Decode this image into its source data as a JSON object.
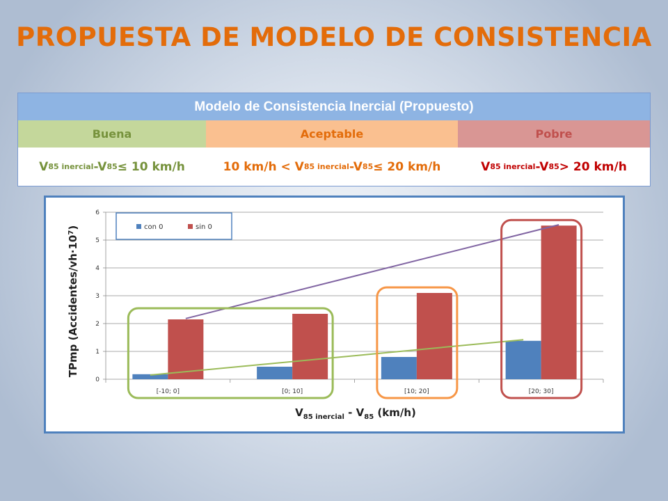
{
  "title": "PROPUESTA DE MODELO DE CONSISTENCIA",
  "model_table": {
    "header": "Modelo de Consistencia Inercial (Propuesto)",
    "categories": [
      {
        "label": "Buena",
        "color": "#c4d79b",
        "text_color": "#76923c"
      },
      {
        "label": "Aceptable",
        "color": "#fac090",
        "text_color": "#e36c0a"
      },
      {
        "label": "Pobre",
        "color": "#d99694",
        "text_color": "#c0504d"
      }
    ],
    "conditions": {
      "buena": {
        "v": "V",
        "sub1": "85 inercial",
        "mid": "-V",
        "sub2": "85",
        "rest": " ≤ 10 km/h"
      },
      "aceptable": {
        "pre": "10 km/h < V",
        "sub1": "85 inercial",
        "mid": "-V",
        "sub2": "85",
        "rest": " ≤ 20 km/h"
      },
      "pobre": {
        "v": "V",
        "sub1": "85 inercial",
        "mid": "-V",
        "sub2": "85",
        "rest": " > 20 km/h"
      }
    }
  },
  "chart_data": {
    "type": "bar",
    "categories": [
      "[-10; 0]",
      "[0; 10]",
      "[10; 20]",
      "[20; 30]"
    ],
    "series": [
      {
        "name": "con 0",
        "values": [
          0.18,
          0.45,
          0.8,
          1.38
        ],
        "color": "#4f81bd"
      },
      {
        "name": "sin 0",
        "values": [
          2.15,
          2.35,
          3.1,
          5.52
        ],
        "color": "#c0504d"
      }
    ],
    "trendlines": [
      {
        "series": "con 0",
        "color": "#9bbb59",
        "start": 0.15,
        "end": 1.42
      },
      {
        "series": "sin 0",
        "color": "#8064a2",
        "start": 2.18,
        "end": 5.55
      }
    ],
    "highlight_groups": [
      {
        "categories": [
          "[-10; 0]",
          "[0; 10]"
        ],
        "color": "#9bbb59"
      },
      {
        "categories": [
          "[10; 20]"
        ],
        "color": "#f79646"
      },
      {
        "categories": [
          "[20; 30]"
        ],
        "color": "#c0504d"
      }
    ],
    "ylim": [
      0,
      6
    ],
    "yticks": [
      "0",
      "1",
      "2",
      "3",
      "4",
      "5",
      "6"
    ],
    "ylabel": {
      "main": "TPmp (Accidentes/vh·10",
      "sup": "7",
      "end": ")"
    },
    "xlabel": {
      "v": "V",
      "sub1": "85 inercial",
      "mid": " - V",
      "sub2": "85",
      "end": " (km/h)"
    },
    "legend": "top-left"
  }
}
